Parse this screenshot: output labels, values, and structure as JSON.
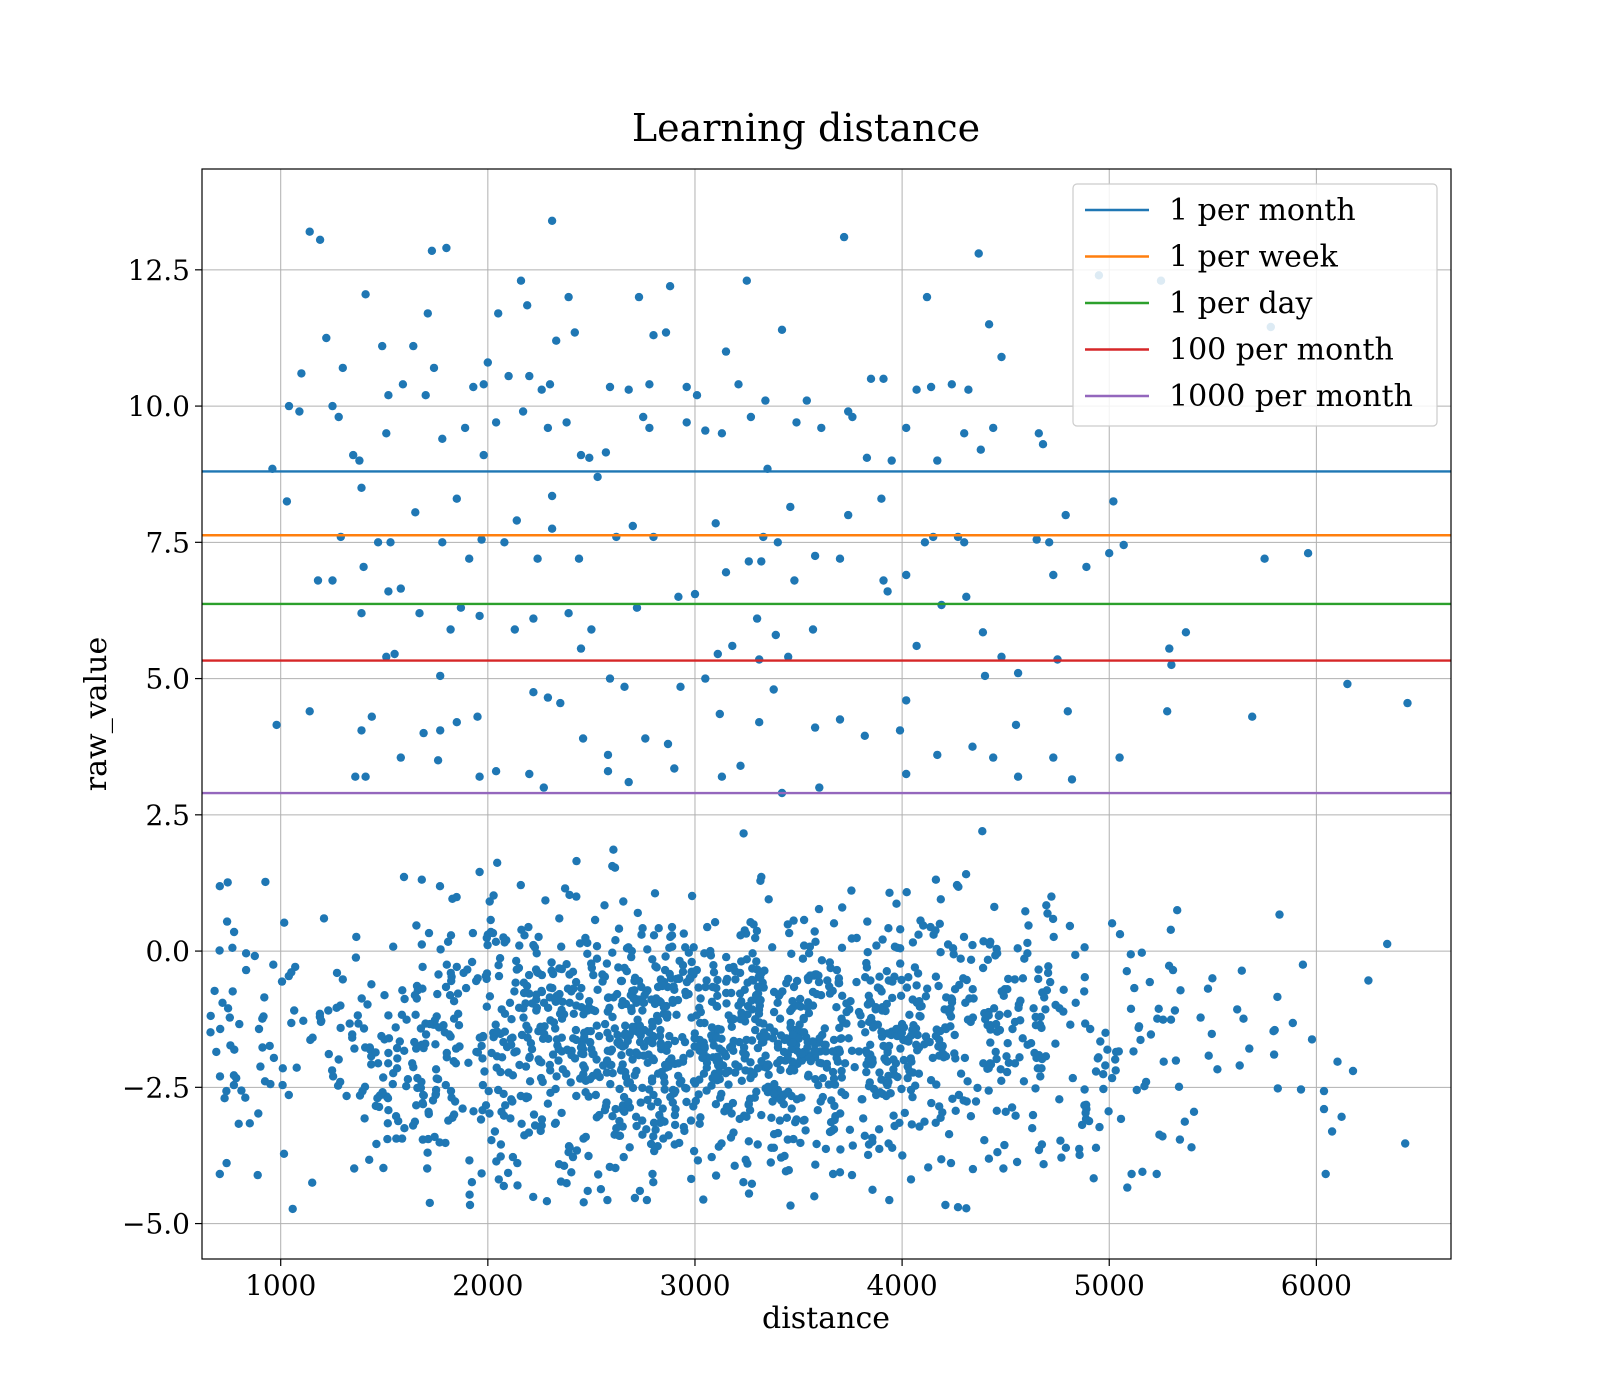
{
  "chart_data": {
    "type": "scatter",
    "title": "Learning distance",
    "xlabel": "distance",
    "ylabel": "raw_value",
    "xlim": [
      620,
      6650
    ],
    "ylim": [
      -5.65,
      14.35
    ],
    "xticks": [
      1000,
      2000,
      3000,
      4000,
      5000,
      6000
    ],
    "yticks": [
      -5.0,
      -2.5,
      0.0,
      2.5,
      5.0,
      7.5,
      10.0,
      12.5
    ],
    "ytick_labels": [
      "−5.0",
      "−2.5",
      "0.0",
      "2.5",
      "5.0",
      "7.5",
      "10.0",
      "12.5"
    ],
    "grid": true,
    "legend_position": "top-right",
    "scatter_color": "#1f77b4",
    "scatter_series": {
      "count": 2000,
      "description_only_for_generation": false,
      "points": [
        [
          1140,
          13.2
        ],
        [
          1190,
          13.05
        ],
        [
          2310,
          13.4
        ],
        [
          3720,
          13.1
        ],
        [
          4370,
          12.8
        ],
        [
          1730,
          12.85
        ],
        [
          1800,
          12.9
        ],
        [
          2160,
          12.3
        ],
        [
          3250,
          12.3
        ],
        [
          2880,
          12.2
        ],
        [
          1410,
          12.05
        ],
        [
          2390,
          12.0
        ],
        [
          4120,
          12.0
        ],
        [
          2730,
          12.0
        ],
        [
          4950,
          12.4
        ],
        [
          5250,
          12.3
        ],
        [
          2190,
          11.85
        ],
        [
          2050,
          11.7
        ],
        [
          1710,
          11.7
        ],
        [
          3420,
          11.4
        ],
        [
          4420,
          11.5
        ],
        [
          5780,
          11.45
        ],
        [
          2420,
          11.35
        ],
        [
          2800,
          11.3
        ],
        [
          2860,
          11.35
        ],
        [
          1220,
          11.25
        ],
        [
          1490,
          11.1
        ],
        [
          1640,
          11.1
        ],
        [
          3150,
          11.0
        ],
        [
          2330,
          11.2
        ],
        [
          4480,
          10.9
        ],
        [
          1100,
          10.6
        ],
        [
          1300,
          10.7
        ],
        [
          1740,
          10.7
        ],
        [
          2000,
          10.8
        ],
        [
          1040,
          10.0
        ],
        [
          1090,
          9.9
        ],
        [
          1250,
          10.0
        ],
        [
          1280,
          9.8
        ],
        [
          1520,
          10.2
        ],
        [
          1590,
          10.4
        ],
        [
          1700,
          10.2
        ],
        [
          1930,
          10.35
        ],
        [
          1980,
          10.4
        ],
        [
          2100,
          10.55
        ],
        [
          2200,
          10.55
        ],
        [
          2260,
          10.3
        ],
        [
          2300,
          10.4
        ],
        [
          2590,
          10.35
        ],
        [
          2680,
          10.3
        ],
        [
          2780,
          10.4
        ],
        [
          2960,
          10.35
        ],
        [
          3010,
          10.2
        ],
        [
          3210,
          10.4
        ],
        [
          3540,
          10.1
        ],
        [
          3850,
          10.5
        ],
        [
          3910,
          10.5
        ],
        [
          4070,
          10.3
        ],
        [
          4140,
          10.35
        ],
        [
          4240,
          10.4
        ],
        [
          4320,
          10.3
        ],
        [
          1350,
          9.1
        ],
        [
          1380,
          9.0
        ],
        [
          1510,
          9.5
        ],
        [
          1780,
          9.4
        ],
        [
          1890,
          9.6
        ],
        [
          1980,
          9.1
        ],
        [
          2040,
          9.7
        ],
        [
          2170,
          9.9
        ],
        [
          2290,
          9.6
        ],
        [
          2380,
          9.7
        ],
        [
          2450,
          9.1
        ],
        [
          2570,
          9.15
        ],
        [
          2750,
          9.8
        ],
        [
          2780,
          9.6
        ],
        [
          2960,
          9.7
        ],
        [
          3050,
          9.55
        ],
        [
          3130,
          9.5
        ],
        [
          3270,
          9.8
        ],
        [
          3340,
          10.1
        ],
        [
          3490,
          9.7
        ],
        [
          3610,
          9.6
        ],
        [
          3740,
          9.9
        ],
        [
          3760,
          9.8
        ],
        [
          3830,
          9.05
        ],
        [
          3950,
          9.0
        ],
        [
          4020,
          9.6
        ],
        [
          4170,
          9.0
        ],
        [
          4300,
          9.5
        ],
        [
          4380,
          9.2
        ],
        [
          4440,
          9.6
        ],
        [
          4660,
          9.5
        ],
        [
          4680,
          9.3
        ],
        [
          960,
          8.85
        ],
        [
          1030,
          8.25
        ],
        [
          1390,
          8.5
        ],
        [
          1650,
          8.05
        ],
        [
          1850,
          8.3
        ],
        [
          1970,
          7.55
        ],
        [
          2140,
          7.9
        ],
        [
          2310,
          8.35
        ],
        [
          2530,
          8.7
        ],
        [
          2490,
          9.05
        ],
        [
          3350,
          8.85
        ],
        [
          3460,
          8.15
        ],
        [
          3740,
          8.0
        ],
        [
          3900,
          8.3
        ],
        [
          4790,
          8.0
        ],
        [
          5020,
          8.25
        ],
        [
          1290,
          7.6
        ],
        [
          1400,
          7.05
        ],
        [
          1470,
          7.5
        ],
        [
          1530,
          7.5
        ],
        [
          1780,
          7.5
        ],
        [
          1910,
          7.2
        ],
        [
          2080,
          7.5
        ],
        [
          2240,
          7.2
        ],
        [
          2310,
          7.75
        ],
        [
          2440,
          7.2
        ],
        [
          2620,
          7.6
        ],
        [
          2700,
          7.8
        ],
        [
          2800,
          7.6
        ],
        [
          3100,
          7.85
        ],
        [
          3260,
          7.15
        ],
        [
          3320,
          7.15
        ],
        [
          3330,
          7.6
        ],
        [
          3400,
          7.5
        ],
        [
          3580,
          7.25
        ],
        [
          3700,
          7.2
        ],
        [
          4110,
          7.5
        ],
        [
          4150,
          7.6
        ],
        [
          4270,
          7.6
        ],
        [
          4300,
          7.5
        ],
        [
          4650,
          7.55
        ],
        [
          4710,
          7.5
        ],
        [
          4730,
          6.9
        ],
        [
          4890,
          7.05
        ],
        [
          5000,
          7.3
        ],
        [
          5070,
          7.45
        ],
        [
          5750,
          7.2
        ],
        [
          5960,
          7.3
        ],
        [
          1180,
          6.8
        ],
        [
          1250,
          6.8
        ],
        [
          1390,
          6.2
        ],
        [
          1520,
          6.6
        ],
        [
          1580,
          6.65
        ],
        [
          1670,
          6.2
        ],
        [
          1820,
          5.9
        ],
        [
          1870,
          6.3
        ],
        [
          1960,
          6.15
        ],
        [
          2130,
          5.9
        ],
        [
          2220,
          6.1
        ],
        [
          2390,
          6.2
        ],
        [
          2500,
          5.9
        ],
        [
          2720,
          6.3
        ],
        [
          2920,
          6.5
        ],
        [
          3000,
          6.55
        ],
        [
          3150,
          6.95
        ],
        [
          3300,
          6.1
        ],
        [
          3390,
          5.8
        ],
        [
          3480,
          6.8
        ],
        [
          3570,
          5.9
        ],
        [
          3910,
          6.8
        ],
        [
          3930,
          6.6
        ],
        [
          4020,
          6.9
        ],
        [
          4190,
          6.35
        ],
        [
          4310,
          6.5
        ],
        [
          4390,
          5.85
        ],
        [
          1510,
          5.4
        ],
        [
          1550,
          5.45
        ],
        [
          1770,
          5.05
        ],
        [
          2450,
          5.55
        ],
        [
          2590,
          5.0
        ],
        [
          2660,
          4.85
        ],
        [
          2930,
          4.85
        ],
        [
          3050,
          5.0
        ],
        [
          3110,
          5.45
        ],
        [
          3180,
          5.6
        ],
        [
          3310,
          5.35
        ],
        [
          3380,
          4.8
        ],
        [
          3450,
          5.4
        ],
        [
          4070,
          5.6
        ],
        [
          4400,
          5.05
        ],
        [
          4480,
          5.4
        ],
        [
          4560,
          5.1
        ],
        [
          4750,
          5.35
        ],
        [
          5300,
          5.25
        ],
        [
          5370,
          5.85
        ],
        [
          5290,
          5.55
        ],
        [
          6150,
          4.9
        ],
        [
          980,
          4.15
        ],
        [
          1140,
          4.4
        ],
        [
          1390,
          4.05
        ],
        [
          1440,
          4.3
        ],
        [
          1690,
          4.0
        ],
        [
          1770,
          4.05
        ],
        [
          1850,
          4.2
        ],
        [
          1950,
          4.3
        ],
        [
          2220,
          4.75
        ],
        [
          2290,
          4.65
        ],
        [
          2350,
          4.55
        ],
        [
          2460,
          3.9
        ],
        [
          2580,
          3.6
        ],
        [
          2760,
          3.9
        ],
        [
          2870,
          3.8
        ],
        [
          3120,
          4.35
        ],
        [
          3220,
          3.4
        ],
        [
          3310,
          4.2
        ],
        [
          3580,
          4.1
        ],
        [
          3700,
          4.25
        ],
        [
          3820,
          3.95
        ],
        [
          3990,
          4.05
        ],
        [
          4020,
          4.6
        ],
        [
          4340,
          3.75
        ],
        [
          4440,
          3.55
        ],
        [
          4550,
          4.15
        ],
        [
          4730,
          3.55
        ],
        [
          4800,
          4.4
        ],
        [
          5280,
          4.4
        ],
        [
          5690,
          4.3
        ],
        [
          6440,
          4.55
        ],
        [
          1360,
          3.2
        ],
        [
          1410,
          3.2
        ],
        [
          1580,
          3.55
        ],
        [
          1760,
          3.5
        ],
        [
          1960,
          3.2
        ],
        [
          2040,
          3.3
        ],
        [
          2200,
          3.25
        ],
        [
          2270,
          3.0
        ],
        [
          2580,
          3.3
        ],
        [
          2680,
          3.1
        ],
        [
          2900,
          3.35
        ],
        [
          3130,
          3.2
        ],
        [
          3420,
          2.9
        ],
        [
          3600,
          3.0
        ],
        [
          4020,
          3.25
        ],
        [
          4170,
          3.6
        ],
        [
          4560,
          3.2
        ],
        [
          4820,
          3.15
        ],
        [
          5050,
          3.55
        ]
      ]
    },
    "series": [
      {
        "name": "1 per month",
        "y": 8.8,
        "color": "#1f77b4"
      },
      {
        "name": "1 per week",
        "y": 7.63,
        "color": "#ff7f0e"
      },
      {
        "name": "1 per day",
        "y": 6.37,
        "color": "#2ca02c"
      },
      {
        "name": "100 per month",
        "y": 5.33,
        "color": "#d62728"
      },
      {
        "name": "1000 per month",
        "y": 2.9,
        "color": "#9467bd"
      }
    ]
  }
}
